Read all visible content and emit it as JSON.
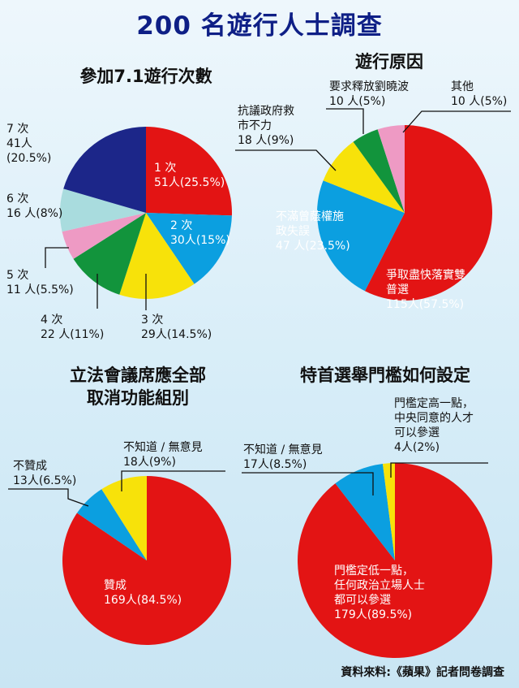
{
  "title": "200 名遊行人士調查",
  "source": "資料來料:《蘋果》記者問卷調查",
  "colors": {
    "red": "#e31414",
    "blue": "#0b9fe0",
    "yellow": "#f7e20a",
    "green": "#12943c",
    "pink": "#ee9ac4",
    "lightblue": "#a9dcde",
    "navy": "#1c2689"
  },
  "chart_data": [
    {
      "type": "pie",
      "title": "參加7.1遊行次數",
      "slices": [
        {
          "name": "1 次",
          "value": 51,
          "pct": 25.5,
          "text": "51人(25.5%)",
          "color": "#e31414"
        },
        {
          "name": "2 次",
          "value": 30,
          "pct": 15,
          "text": "30人(15%)",
          "color": "#0b9fe0"
        },
        {
          "name": "3 次",
          "value": 29,
          "pct": 14.5,
          "text": "29人(14.5%)",
          "color": "#f7e20a"
        },
        {
          "name": "4 次",
          "value": 22,
          "pct": 11,
          "text": "22 人(11%)",
          "color": "#12943c"
        },
        {
          "name": "5 次",
          "value": 11,
          "pct": 5.5,
          "text": "11 人(5.5%)",
          "color": "#ee9ac4"
        },
        {
          "name": "6 次",
          "value": 16,
          "pct": 8,
          "text": "16 人(8%)",
          "color": "#a9dcde"
        },
        {
          "name": "7 次",
          "value": 41,
          "pct": 20.5,
          "text": "41人(20.5%)",
          "color": "#1c2689"
        }
      ]
    },
    {
      "type": "pie",
      "title": "遊行原因",
      "slices": [
        {
          "name": "爭取盡快落實雙普選",
          "value": 115,
          "pct": 57.5,
          "text": "115人(57.5%)",
          "color": "#e31414"
        },
        {
          "name": "不滿曾蔭權施政失誤",
          "value": 47,
          "pct": 23.5,
          "text": "47 人(23.5%)",
          "color": "#0b9fe0"
        },
        {
          "name": "抗議政府救市不力",
          "value": 18,
          "pct": 9,
          "text": "18 人(9%)",
          "color": "#f7e20a"
        },
        {
          "name": "要求釋放劉曉波",
          "value": 10,
          "pct": 5,
          "text": "10 人(5%)",
          "color": "#12943c"
        },
        {
          "name": "其他",
          "value": 10,
          "pct": 5,
          "text": "10 人(5%)",
          "color": "#ee9ac4"
        }
      ]
    },
    {
      "type": "pie",
      "title": "立法會議席應全部取消功能組別",
      "slices": [
        {
          "name": "贊成",
          "value": 169,
          "pct": 84.5,
          "text": "169人(84.5%)",
          "color": "#e31414"
        },
        {
          "name": "不贊成",
          "value": 13,
          "pct": 6.5,
          "text": "13人(6.5%)",
          "color": "#0b9fe0"
        },
        {
          "name": "不知道 / 無意見",
          "value": 18,
          "pct": 9,
          "text": "18人(9%)",
          "color": "#f7e20a"
        }
      ]
    },
    {
      "type": "pie",
      "title": "特首選舉門檻如何設定",
      "slices": [
        {
          "name": "門檻定低一點，任何政治立場人士都可以參選",
          "value": 179,
          "pct": 89.5,
          "text": "179人(89.5%)",
          "color": "#e31414"
        },
        {
          "name": "不知道 / 無意見",
          "value": 17,
          "pct": 8.5,
          "text": "17人(8.5%)",
          "color": "#0b9fe0"
        },
        {
          "name": "門檻定高一點，中央同意的人才可以參選",
          "value": 4,
          "pct": 2,
          "text": "4人(2%)",
          "color": "#f7e20a"
        }
      ]
    }
  ],
  "labels": {
    "c1": {
      "s1": {
        "a": "1 次",
        "b": "51人(25.5%)"
      },
      "s2": {
        "a": "2 次",
        "b": "30人(15%)"
      },
      "s3": {
        "a": "3 次",
        "b": "29人(14.5%)"
      },
      "s4": {
        "a": "4 次",
        "b": "22 人(11%)"
      },
      "s5": {
        "a": "5 次",
        "b": "11 人(5.5%)"
      },
      "s6": {
        "a": "6 次",
        "b": "16 人(8%)"
      },
      "s7": {
        "a": "7 次",
        "b": "41人",
        "c": "(20.5%)"
      }
    },
    "c2": {
      "s1": {
        "a": "爭取盡快落實雙",
        "b": "普選",
        "c": "115人(57.5%)"
      },
      "s2": {
        "a": "不滿曾蔭權施",
        "b": "政失誤",
        "c": "47 人(23.5%)"
      },
      "s3": {
        "a": "抗議政府救",
        "b": "市不力",
        "c": "18 人(9%)"
      },
      "s4": {
        "a": "要求釋放劉曉波",
        "b": "10 人(5%)"
      },
      "s5": {
        "a": "其他",
        "b": "10 人(5%)"
      }
    },
    "c3": {
      "title1": "立法會議席應全部",
      "title2": "取消功能組別",
      "s1": {
        "a": "贊成",
        "b": "169人(84.5%)"
      },
      "s2": {
        "a": "不贊成",
        "b": "13人(6.5%)"
      },
      "s3": {
        "a": "不知道 / 無意見",
        "b": "18人(9%)"
      }
    },
    "c4": {
      "s1": {
        "a": "門檻定低一點，",
        "b": "任何政治立場人士",
        "c": "都可以參選",
        "d": "179人(89.5%)"
      },
      "s2": {
        "a": "不知道 / 無意見",
        "b": "17人(8.5%)"
      },
      "s3": {
        "a": "門檻定高一點，",
        "b": "中央同意的人才",
        "c": "可以參選",
        "d": "4人(2%)"
      }
    }
  }
}
